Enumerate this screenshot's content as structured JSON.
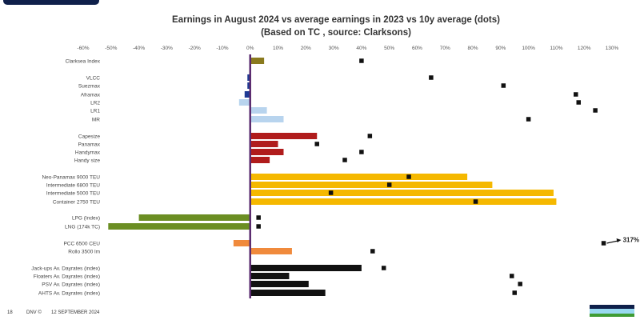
{
  "header": {
    "title": "Earnings in August 2024 vs average earnings in 2023 vs 10y average (dots)",
    "subtitle": "(Based on TC , source: Clarksons)"
  },
  "footer": {
    "page_number": "18",
    "brand": "DNV ©",
    "date": "12 SEPTEMBER 2024"
  },
  "colors": {
    "tankers_dark": "#1f3a93",
    "tankers_light": "#b8d4ee",
    "bulk": "#b01c1c",
    "containers": "#f5b800",
    "gas_green": "#6b8e23",
    "gas_orange": "#f08a3c",
    "offshore": "#111111",
    "index": "#8a7a1e",
    "zero_line": "#5b2c6f",
    "dots": "#111111"
  },
  "chart_data": {
    "type": "bar",
    "orientation": "horizontal",
    "x_range": [
      -60,
      130
    ],
    "x_ticks": [
      "-60%",
      "-50%",
      "-40%",
      "-30%",
      "-20%",
      "-10%",
      "0%",
      "10%",
      "20%",
      "30%",
      "40%",
      "50%",
      "60%",
      "70%",
      "80%",
      "90%",
      "100%",
      "110%",
      "120%",
      "130%"
    ],
    "grid": false,
    "annotations": [
      {
        "label": "317%",
        "category": "PCC 6500 CEU"
      }
    ],
    "categories": [
      {
        "label": "Clarksea Index",
        "value": 5,
        "dot": 40,
        "color": "index"
      },
      {
        "label": "VLCC",
        "value": -1,
        "dot": 65,
        "color": "tankers_dark"
      },
      {
        "label": "Suezmax",
        "value": -1,
        "dot": 91,
        "color": "tankers_dark"
      },
      {
        "label": "Aframax",
        "value": -2,
        "dot": 117,
        "color": "tankers_dark"
      },
      {
        "label": "LR2",
        "value": -4,
        "dot": 118,
        "color": "tankers_light"
      },
      {
        "label": "LR1",
        "value": 6,
        "dot": 124,
        "color": "tankers_light"
      },
      {
        "label": "MR",
        "value": 12,
        "dot": 100,
        "color": "tankers_light"
      },
      {
        "label": "Capesize",
        "value": 24,
        "dot": 43,
        "color": "bulk"
      },
      {
        "label": "Panamax",
        "value": 10,
        "dot": 24,
        "color": "bulk"
      },
      {
        "label": "Handymax",
        "value": 12,
        "dot": 40,
        "color": "bulk"
      },
      {
        "label": "Handy size",
        "value": 7,
        "dot": 34,
        "color": "bulk"
      },
      {
        "label": "Neo-Panamax 9000 TEU",
        "value": 78,
        "dot": 57,
        "color": "containers"
      },
      {
        "label": "Intermediate 6800 TEU",
        "value": 87,
        "dot": 50,
        "color": "containers"
      },
      {
        "label": "Intermediate 5000 TEU",
        "value": 109,
        "dot": 29,
        "color": "containers"
      },
      {
        "label": "Container 2750 TEU",
        "value": 110,
        "dot": 81,
        "color": "containers"
      },
      {
        "label": "LPG (Index)",
        "value": -40,
        "dot": 3,
        "color": "gas_green"
      },
      {
        "label": "LNG (174k TC)",
        "value": -51,
        "dot": 3,
        "color": "gas_green"
      },
      {
        "label": "PCC 6500 CEU",
        "value": -6,
        "dot": 127,
        "color": "gas_orange"
      },
      {
        "label": "Rollo 3500 lm",
        "value": 15,
        "dot": 44,
        "color": "gas_orange"
      },
      {
        "label": "Jack-ups Av. Dayrates (index)",
        "value": 40,
        "dot": 48,
        "color": "offshore"
      },
      {
        "label": "Floaters Av. Dayrates (index)",
        "value": 14,
        "dot": 94,
        "color": "offshore"
      },
      {
        "label": "PSV Av. Dayrates (index)",
        "value": 21,
        "dot": 97,
        "color": "offshore"
      },
      {
        "label": "AHTS Av. Dayrates (index)",
        "value": 27,
        "dot": 95,
        "color": "offshore"
      }
    ]
  }
}
